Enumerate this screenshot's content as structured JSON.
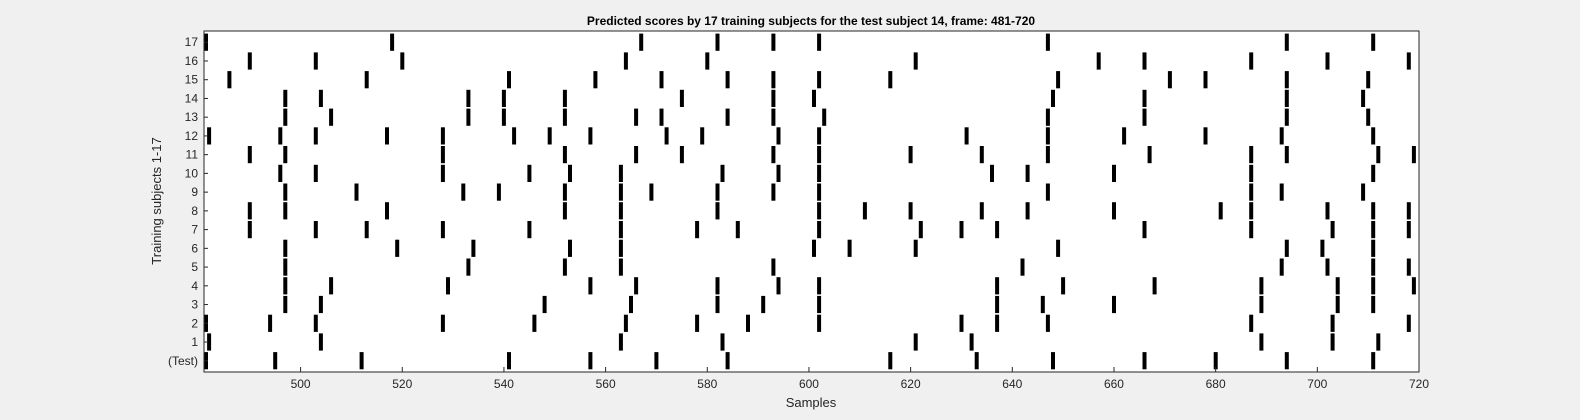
{
  "chart_data": {
    "type": "raster",
    "title": "Predicted scores by 17 training subjects for the test subject 14, frame: 481-720",
    "xlabel": "Samples",
    "ylabel": "Training subjects 1-17",
    "xlim": [
      481,
      720
    ],
    "xticks": [
      500,
      520,
      540,
      560,
      580,
      600,
      620,
      640,
      660,
      680,
      700,
      720
    ],
    "row_labels": [
      "(Test)",
      "1",
      "2",
      "3",
      "4",
      "5",
      "6",
      "7",
      "8",
      "9",
      "10",
      "11",
      "12",
      "13",
      "14",
      "15",
      "16",
      "17"
    ],
    "grid": false,
    "colors": {
      "background": "#f0f0f0",
      "axes_bg": "#ffffff",
      "event": "#000000",
      "text": "#262626"
    },
    "rows": [
      {
        "label": "(Test)",
        "events": [
          481,
          495,
          512,
          541,
          557,
          570,
          584,
          616,
          633,
          648,
          666,
          680,
          694,
          711
        ]
      },
      {
        "label": "1",
        "events": [
          482,
          504,
          563,
          583,
          621,
          632,
          689,
          703,
          712
        ]
      },
      {
        "label": "2",
        "events": [
          481,
          494,
          503,
          528,
          546,
          564,
          578,
          588,
          602,
          630,
          637,
          647,
          687,
          703,
          718
        ]
      },
      {
        "label": "3",
        "events": [
          497,
          504,
          548,
          565,
          582,
          591,
          602,
          637,
          646,
          660,
          689,
          704,
          711
        ]
      },
      {
        "label": "4",
        "events": [
          497,
          506,
          529,
          557,
          566,
          582,
          594,
          602,
          637,
          650,
          668,
          689,
          704,
          711,
          719
        ]
      },
      {
        "label": "5",
        "events": [
          497,
          533,
          552,
          563,
          593,
          642,
          693,
          702,
          711,
          718
        ]
      },
      {
        "label": "6",
        "events": [
          497,
          519,
          534,
          553,
          563,
          601,
          608,
          621,
          649,
          694,
          701,
          711
        ]
      },
      {
        "label": "7",
        "events": [
          490,
          503,
          513,
          528,
          545,
          563,
          578,
          586,
          602,
          622,
          630,
          637,
          666,
          687,
          703,
          711,
          718
        ]
      },
      {
        "label": "8",
        "events": [
          490,
          497,
          517,
          552,
          563,
          582,
          602,
          611,
          620,
          634,
          643,
          660,
          681,
          687,
          702,
          711,
          718
        ]
      },
      {
        "label": "9",
        "events": [
          497,
          511,
          532,
          539,
          552,
          563,
          569,
          582,
          593,
          602,
          647,
          687,
          693,
          709
        ]
      },
      {
        "label": "10",
        "events": [
          496,
          503,
          528,
          545,
          553,
          563,
          583,
          594,
          602,
          636,
          643,
          660,
          687,
          711
        ]
      },
      {
        "label": "11",
        "events": [
          490,
          497,
          528,
          552,
          566,
          575,
          593,
          602,
          620,
          634,
          647,
          667,
          687,
          694,
          712,
          719
        ]
      },
      {
        "label": "12",
        "events": [
          482,
          496,
          503,
          517,
          528,
          542,
          549,
          557,
          572,
          579,
          594,
          602,
          631,
          647,
          662,
          678,
          693,
          711
        ]
      },
      {
        "label": "13",
        "events": [
          497,
          506,
          533,
          540,
          552,
          566,
          571,
          584,
          593,
          603,
          647,
          666,
          694,
          710
        ]
      },
      {
        "label": "14",
        "events": [
          497,
          504,
          533,
          540,
          552,
          575,
          593,
          601,
          648,
          666,
          694,
          709
        ]
      },
      {
        "label": "15",
        "events": [
          486,
          513,
          541,
          558,
          571,
          584,
          593,
          602,
          616,
          649,
          671,
          678,
          694,
          710
        ]
      },
      {
        "label": "16",
        "events": [
          490,
          503,
          520,
          564,
          580,
          621,
          657,
          666,
          687,
          702,
          718
        ]
      },
      {
        "label": "17",
        "events": [
          481,
          518,
          567,
          582,
          593,
          602,
          647,
          694,
          711
        ]
      }
    ]
  }
}
